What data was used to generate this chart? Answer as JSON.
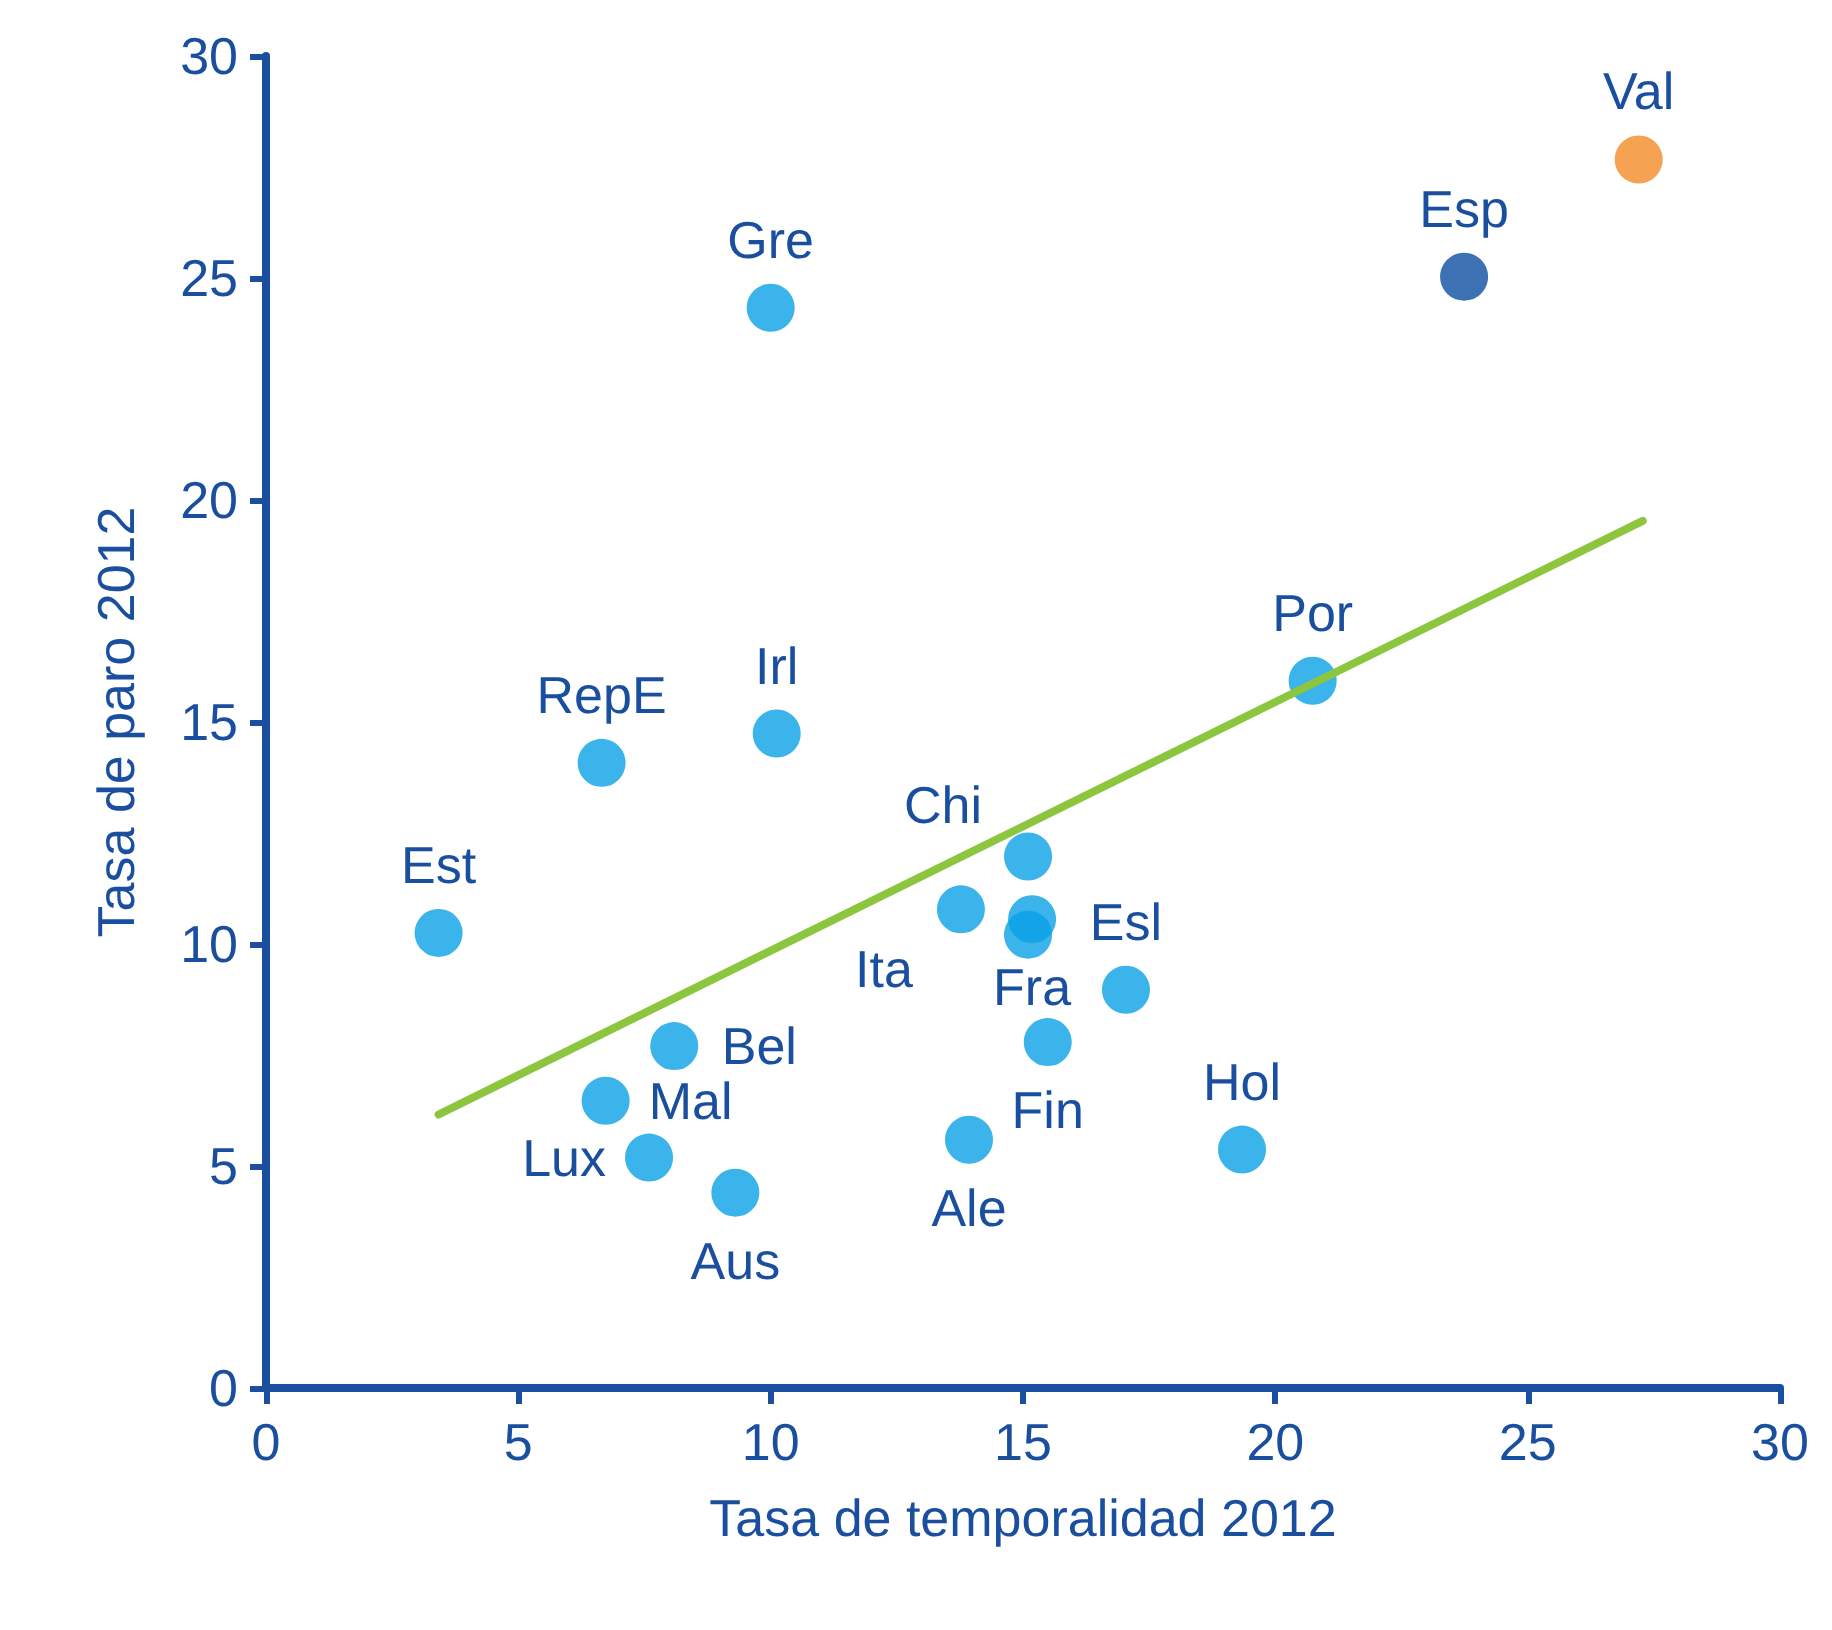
{
  "chart_data": {
    "type": "scatter",
    "xlabel": "Tasa de temporalidad 2012",
    "ylabel": "Tasa de paro 2012",
    "xlim": [
      0,
      30
    ],
    "xticks": [
      0,
      5,
      10,
      15,
      20,
      25,
      30
    ],
    "ylim": [
      0,
      30
    ],
    "yticks": [
      0,
      5,
      10,
      15,
      20,
      25,
      30
    ],
    "grid": false,
    "series": [
      {
        "color": "#0aa0e6",
        "x": [
          3.42,
          6.65,
          10.0,
          10.12,
          6.73,
          8.09,
          7.59,
          9.3,
          13.77,
          15.1,
          15.18,
          15.1,
          15.49,
          17.04,
          19.34,
          13.93,
          20.74
        ],
        "values": [
          10.25,
          14.08,
          24.33,
          14.74,
          6.47,
          7.7,
          5.19,
          4.4,
          10.78,
          11.97,
          10.56,
          10.21,
          7.79,
          8.97,
          5.37,
          5.59,
          15.93
        ]
      },
      {
        "color": "#0b4fa0",
        "x": [
          23.74
        ],
        "values": [
          25.03
        ]
      },
      {
        "color": "#f28c28",
        "x": [
          27.2
        ],
        "values": [
          27.67
        ]
      },
      {
        "type": "line",
        "color": "#8cc63f",
        "x": [
          3.42,
          27.28
        ],
        "values": [
          6.16,
          19.53
        ]
      }
    ],
    "annotations": [
      {
        "text": "Gre",
        "x": 10.0,
        "y": 24.33
      },
      {
        "text": "Esp",
        "x": 23.74,
        "y": 25.03
      },
      {
        "text": "Val",
        "x": 27.2,
        "y": 27.67
      },
      {
        "text": "RepE",
        "x": 6.65,
        "y": 14.08
      },
      {
        "text": "Irl",
        "x": 10.12,
        "y": 14.74
      },
      {
        "text": "Por",
        "x": 20.74,
        "y": 15.93
      },
      {
        "text": "Chi",
        "x": 15.1,
        "y": 11.97
      },
      {
        "text": "Ita",
        "x": 13.77,
        "y": 10.78
      },
      {
        "text": "Fra",
        "x": 15.18,
        "y": 10.56
      },
      {
        "text": "Est",
        "x": 3.42,
        "y": 10.25
      },
      {
        "text": "Esl",
        "x": 17.04,
        "y": 8.97
      },
      {
        "text": "Bel",
        "x": 8.09,
        "y": 7.7
      },
      {
        "text": "Mal",
        "x": 6.73,
        "y": 6.47
      },
      {
        "text": "Fin",
        "x": 15.49,
        "y": 7.79
      },
      {
        "text": "Hol",
        "x": 19.34,
        "y": 5.37
      },
      {
        "text": "Aus",
        "x": 9.3,
        "y": 4.4
      },
      {
        "text": "Lux",
        "x": 7.59,
        "y": 5.19
      },
      {
        "text": "Ale",
        "x": 13.93,
        "y": 5.59
      }
    ]
  }
}
